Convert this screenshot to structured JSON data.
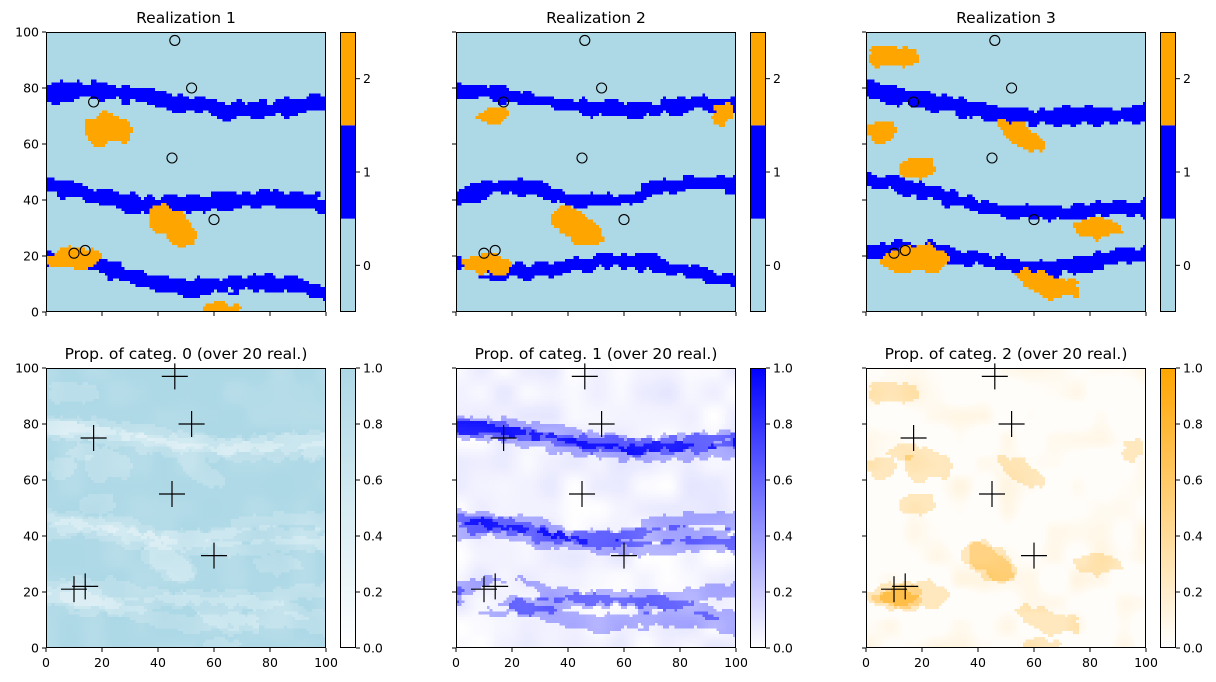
{
  "figure": {
    "points": [
      [
        46,
        97
      ],
      [
        52,
        80
      ],
      [
        17,
        75
      ],
      [
        45,
        55
      ],
      [
        60,
        33
      ],
      [
        10,
        21
      ],
      [
        14,
        22
      ]
    ]
  },
  "chart_data": [
    {
      "type": "heatmap",
      "title": "Realization 1",
      "xlim": [
        0,
        100
      ],
      "ylim": [
        0,
        100
      ],
      "xticks": [
        "0",
        "20",
        "40",
        "60",
        "80",
        "100"
      ],
      "yticks": [
        "0",
        "20",
        "40",
        "60",
        "80",
        "100"
      ],
      "show_xticklabels": false,
      "show_yticklabels": true,
      "colormap": "categorical",
      "categories": [
        0,
        1,
        2
      ],
      "colors": [
        "#add8e6",
        "#0000ff",
        "#ffa500"
      ],
      "colorbar_ticks": [
        "0",
        "1",
        "2"
      ],
      "markers": "circle",
      "channels": [
        {
          "y0": 77,
          "slope": -3,
          "amp": 2.5,
          "freq": 0.06,
          "phase": 0.5,
          "width": 6
        },
        {
          "y0": 43,
          "slope": -6,
          "amp": 2.5,
          "freq": 0.07,
          "phase": 2.0,
          "width": 6
        },
        {
          "y0": 17,
          "slope": -11,
          "amp": 2.5,
          "freq": 0.08,
          "phase": 1.0,
          "width": 5
        }
      ],
      "blobs": [
        {
          "x": 22,
          "y": 65,
          "rx": 9,
          "ry": 5.5
        },
        {
          "x": 45,
          "y": 31,
          "rx": 10,
          "ry": 5,
          "rot": -0.6
        },
        {
          "x": 10,
          "y": 19,
          "rx": 10,
          "ry": 3.5
        },
        {
          "x": 63,
          "y": 1,
          "rx": 7,
          "ry": 2.5
        }
      ]
    },
    {
      "type": "heatmap",
      "title": "Realization 2",
      "xlim": [
        0,
        100
      ],
      "ylim": [
        0,
        100
      ],
      "xticks": [
        "0",
        "20",
        "40",
        "60",
        "80",
        "100"
      ],
      "yticks": [
        "0",
        "20",
        "40",
        "60",
        "80",
        "100"
      ],
      "show_xticklabels": false,
      "show_yticklabels": false,
      "colormap": "categorical",
      "categories": [
        0,
        1,
        2
      ],
      "colors": [
        "#add8e6",
        "#0000ff",
        "#ffa500"
      ],
      "colorbar_ticks": [
        "0",
        "1",
        "2"
      ],
      "markers": "circle",
      "channels": [
        {
          "y0": 77,
          "slope": -5,
          "amp": 2,
          "freq": 0.07,
          "phase": 1.0,
          "width": 5
        },
        {
          "y0": 41,
          "slope": 3,
          "amp": 3,
          "freq": 0.09,
          "phase": 0.0,
          "width": 5
        },
        {
          "y0": 18,
          "slope": -4,
          "amp": 3,
          "freq": 0.08,
          "phase": 3.0,
          "width": 5
        }
      ],
      "blobs": [
        {
          "x": 13,
          "y": 70,
          "rx": 6,
          "ry": 3
        },
        {
          "x": 43,
          "y": 31,
          "rx": 10,
          "ry": 5,
          "rot": -0.6
        },
        {
          "x": 11,
          "y": 17,
          "rx": 9,
          "ry": 3.5
        },
        {
          "x": 95,
          "y": 70,
          "rx": 4,
          "ry": 4
        }
      ]
    },
    {
      "type": "heatmap",
      "title": "Realization 3",
      "xlim": [
        0,
        100
      ],
      "ylim": [
        0,
        100
      ],
      "xticks": [
        "0",
        "20",
        "40",
        "60",
        "80",
        "100"
      ],
      "yticks": [
        "0",
        "20",
        "40",
        "60",
        "80",
        "100"
      ],
      "show_xticklabels": false,
      "show_yticklabels": false,
      "colormap": "categorical",
      "categories": [
        0,
        1,
        2
      ],
      "colors": [
        "#add8e6",
        "#0000ff",
        "#ffa500"
      ],
      "colorbar_ticks": [
        "0",
        "1",
        "2"
      ],
      "markers": "circle",
      "channels": [
        {
          "y0": 77,
          "slope": -8,
          "amp": 2.5,
          "freq": 0.05,
          "phase": 2.0,
          "width": 6
        },
        {
          "y0": 44,
          "slope": -10,
          "amp": 3,
          "freq": 0.06,
          "phase": 1.5,
          "width": 5
        },
        {
          "y0": 20,
          "slope": -2,
          "amp": 3,
          "freq": 0.07,
          "phase": 0.5,
          "width": 5
        }
      ],
      "blobs": [
        {
          "x": 10,
          "y": 91,
          "rx": 9,
          "ry": 4
        },
        {
          "x": 6,
          "y": 65,
          "rx": 5,
          "ry": 4
        },
        {
          "x": 18,
          "y": 51,
          "rx": 7,
          "ry": 4
        },
        {
          "x": 55,
          "y": 63,
          "rx": 9,
          "ry": 4,
          "rot": -0.5
        },
        {
          "x": 82,
          "y": 30,
          "rx": 9,
          "ry": 3.5
        },
        {
          "x": 18,
          "y": 19,
          "rx": 12,
          "ry": 5
        },
        {
          "x": 65,
          "y": 10,
          "rx": 13,
          "ry": 4,
          "rot": -0.3
        }
      ]
    },
    {
      "type": "heatmap",
      "title": "Prop. of categ. 0 (over 20 real.)",
      "xlim": [
        0,
        100
      ],
      "ylim": [
        0,
        100
      ],
      "xticks": [
        "0",
        "20",
        "40",
        "60",
        "80",
        "100"
      ],
      "yticks": [
        "0",
        "20",
        "40",
        "60",
        "80",
        "100"
      ],
      "show_xticklabels": true,
      "show_yticklabels": true,
      "colormap": "white-to-color",
      "color": "#add8e6",
      "category": 0,
      "vmin": 0,
      "vmax": 1,
      "colorbar_ticks": [
        "0.0",
        "0.2",
        "0.4",
        "0.6",
        "0.8",
        "1.0"
      ],
      "markers": "plus"
    },
    {
      "type": "heatmap",
      "title": "Prop. of categ. 1 (over 20 real.)",
      "xlim": [
        0,
        100
      ],
      "ylim": [
        0,
        100
      ],
      "xticks": [
        "0",
        "20",
        "40",
        "60",
        "80",
        "100"
      ],
      "yticks": [
        "0",
        "20",
        "40",
        "60",
        "80",
        "100"
      ],
      "show_xticklabels": true,
      "show_yticklabels": false,
      "colormap": "white-to-color",
      "color": "#0000ff",
      "category": 1,
      "vmin": 0,
      "vmax": 1,
      "colorbar_ticks": [
        "0.0",
        "0.2",
        "0.4",
        "0.6",
        "0.8",
        "1.0"
      ],
      "markers": "plus"
    },
    {
      "type": "heatmap",
      "title": "Prop. of categ. 2 (over 20 real.)",
      "xlim": [
        0,
        100
      ],
      "ylim": [
        0,
        100
      ],
      "xticks": [
        "0",
        "20",
        "40",
        "60",
        "80",
        "100"
      ],
      "yticks": [
        "0",
        "20",
        "40",
        "60",
        "80",
        "100"
      ],
      "show_xticklabels": true,
      "show_yticklabels": false,
      "colormap": "white-to-color",
      "color": "#ffa500",
      "category": 2,
      "vmin": 0,
      "vmax": 1,
      "colorbar_ticks": [
        "0.0",
        "0.2",
        "0.4",
        "0.6",
        "0.8",
        "1.0"
      ],
      "markers": "plus"
    }
  ]
}
